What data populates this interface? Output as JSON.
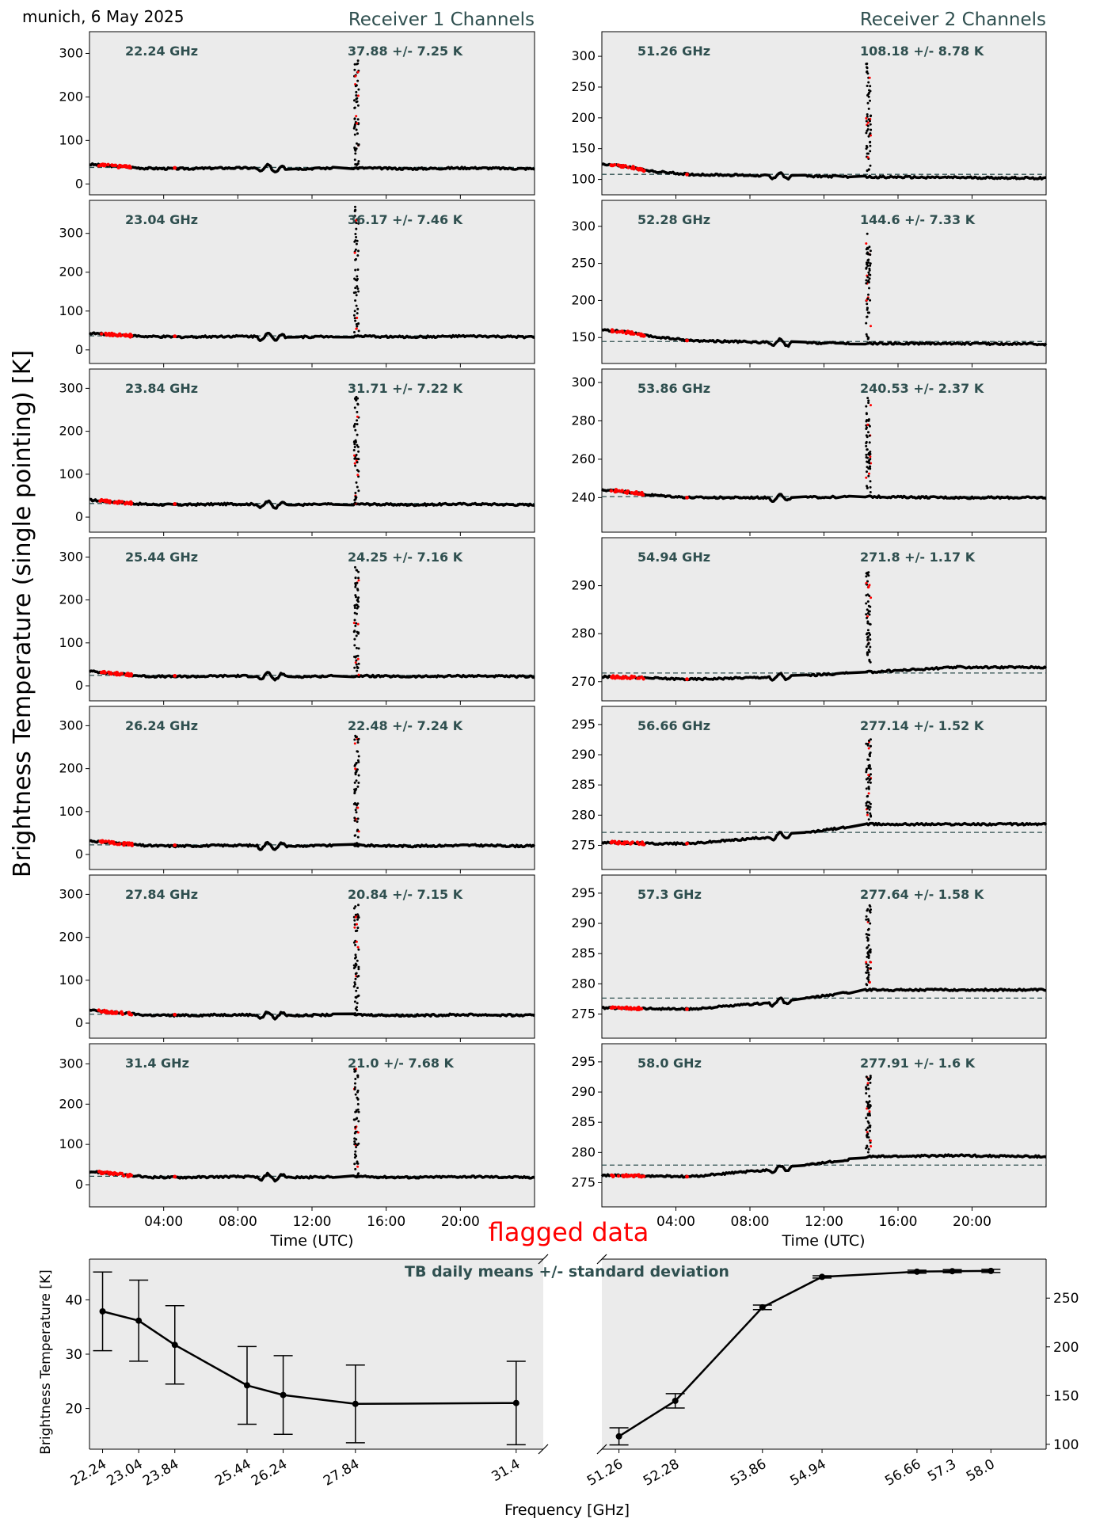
{
  "header": {
    "location_date": "munich, 6 May 2025",
    "receiver1_title": "Receiver 1 Channels",
    "receiver2_title": "Receiver 2 Channels"
  },
  "labels": {
    "y_global": "Brightness Temperature (single pointing) [K]",
    "x_time": "Time (UTC)",
    "flagged": "flagged data",
    "x_freq": "Frequency [GHz]",
    "y_bottom": "Brightness Temperature [K]",
    "bottom_title": "TB daily means +/- standard deviation"
  },
  "colors": {
    "panel_bg": "#ebebeb",
    "accent": "#2f4f4f",
    "flag": "#ff0000",
    "data": "#000000"
  },
  "chart_data": {
    "type": "scatter",
    "time_ticks": [
      "04:00",
      "08:00",
      "12:00",
      "16:00",
      "20:00"
    ],
    "time_tick_hours": [
      4,
      8,
      12,
      16,
      20
    ],
    "x_range_hours": [
      0,
      24
    ],
    "spike_time_hours": 14.4,
    "receiver1": [
      {
        "freq": "22.24 GHz",
        "stat": "37.88 +/- 7.25 K",
        "mean": 37.88,
        "start": 45,
        "ylim": [
          -25,
          350
        ],
        "yticks": [
          0,
          100,
          200,
          300
        ],
        "peak": 285
      },
      {
        "freq": "23.04 GHz",
        "stat": "36.17 +/- 7.46 K",
        "mean": 36.17,
        "start": 43,
        "ylim": [
          -35,
          385
        ],
        "yticks": [
          0,
          100,
          200,
          300
        ],
        "peak": 370
      },
      {
        "freq": "23.84 GHz",
        "stat": "31.71 +/- 7.22 K",
        "mean": 31.71,
        "start": 40,
        "ylim": [
          -35,
          345
        ],
        "yticks": [
          0,
          100,
          200,
          300
        ],
        "peak": 285
      },
      {
        "freq": "25.44 GHz",
        "stat": "24.25 +/- 7.16 K",
        "mean": 24.25,
        "start": 34,
        "ylim": [
          -35,
          345
        ],
        "yticks": [
          0,
          100,
          200,
          300
        ],
        "peak": 285
      },
      {
        "freq": "26.24 GHz",
        "stat": "22.48 +/- 7.24 K",
        "mean": 22.48,
        "start": 32,
        "ylim": [
          -35,
          345
        ],
        "yticks": [
          0,
          100,
          200,
          300
        ],
        "peak": 285
      },
      {
        "freq": "27.84 GHz",
        "stat": "20.84 +/- 7.15 K",
        "mean": 20.84,
        "start": 30,
        "ylim": [
          -35,
          345
        ],
        "yticks": [
          0,
          100,
          200,
          300
        ],
        "peak": 280
      },
      {
        "freq": "31.4 GHz",
        "stat": "21.0 +/- 7.68 K",
        "mean": 21.0,
        "start": 33,
        "ylim": [
          -55,
          350
        ],
        "yticks": [
          0,
          100,
          200,
          300
        ],
        "peak": 290
      }
    ],
    "receiver2": [
      {
        "freq": "51.26 GHz",
        "stat": "108.18 +/- 8.78 K",
        "mean": 108.18,
        "start": 125,
        "ylim": [
          75,
          340
        ],
        "yticks": [
          100,
          150,
          200,
          250,
          300
        ],
        "peak": 290,
        "trend": [
          120,
          108,
          106,
          104,
          103,
          102
        ]
      },
      {
        "freq": "52.28 GHz",
        "stat": "144.6 +/- 7.33 K",
        "mean": 144.6,
        "start": 160,
        "ylim": [
          115,
          335
        ],
        "yticks": [
          150,
          200,
          250,
          300
        ],
        "peak": 290,
        "trend": [
          158,
          146,
          143,
          142,
          142,
          141
        ]
      },
      {
        "freq": "53.86 GHz",
        "stat": "240.53 +/- 2.37 K",
        "mean": 240.53,
        "start": 244,
        "ylim": [
          222,
          307
        ],
        "yticks": [
          240,
          260,
          280,
          300
        ],
        "peak": 292,
        "trend": [
          243,
          240,
          240,
          240.5,
          240,
          240
        ]
      },
      {
        "freq": "54.94 GHz",
        "stat": "271.8 +/- 1.17 K",
        "mean": 271.8,
        "start": 271,
        "ylim": [
          266,
          300
        ],
        "yticks": [
          270,
          280,
          290
        ],
        "peak": 293,
        "trend": [
          271,
          270.5,
          271,
          272,
          273,
          273
        ]
      },
      {
        "freq": "56.66 GHz",
        "stat": "277.14 +/- 1.52 K",
        "mean": 277.14,
        "start": 275.5,
        "ylim": [
          271,
          298
        ],
        "yticks": [
          275,
          280,
          285,
          290,
          295
        ],
        "peak": 293,
        "trend": [
          275.3,
          275.3,
          276.5,
          278.5,
          278.5,
          278.5
        ]
      },
      {
        "freq": "57.3 GHz",
        "stat": "277.64 +/- 1.58 K",
        "mean": 277.64,
        "start": 276,
        "ylim": [
          271,
          298
        ],
        "yticks": [
          275,
          280,
          285,
          290,
          295
        ],
        "peak": 293,
        "trend": [
          276,
          275.8,
          277,
          279,
          279,
          279
        ]
      },
      {
        "freq": "58.0 GHz",
        "stat": "277.91 +/- 1.6 K",
        "mean": 277.91,
        "start": 276.2,
        "ylim": [
          271,
          298
        ],
        "yticks": [
          275,
          280,
          285,
          290,
          295
        ],
        "peak": 293,
        "trend": [
          276.2,
          276,
          277.3,
          279.3,
          279.5,
          279.3
        ]
      }
    ],
    "means": {
      "left": {
        "ylim": [
          12.5,
          47.5
        ],
        "yticks": [
          20,
          30,
          40
        ],
        "xlim": [
          21.95,
          32.0
        ],
        "points": [
          {
            "label": "22.24",
            "x": 22.24,
            "y": 37.88,
            "err": 7.25
          },
          {
            "label": "23.04",
            "x": 23.04,
            "y": 36.17,
            "err": 7.46
          },
          {
            "label": "23.84",
            "x": 23.84,
            "y": 31.71,
            "err": 7.22
          },
          {
            "label": "25.44",
            "x": 25.44,
            "y": 24.25,
            "err": 7.16
          },
          {
            "label": "26.24",
            "x": 26.24,
            "y": 22.48,
            "err": 7.24
          },
          {
            "label": "27.84",
            "x": 27.84,
            "y": 20.84,
            "err": 7.15
          },
          {
            "label": "31.4",
            "x": 31.4,
            "y": 21.0,
            "err": 7.68
          }
        ]
      },
      "right": {
        "ylim": [
          95,
          290
        ],
        "yticks": [
          100,
          150,
          200,
          250
        ],
        "xlim": [
          50.95,
          59.0
        ],
        "points": [
          {
            "label": "51.26",
            "x": 51.26,
            "y": 108.18,
            "err": 8.78
          },
          {
            "label": "52.28",
            "x": 52.28,
            "y": 144.6,
            "err": 7.33
          },
          {
            "label": "53.86",
            "x": 53.86,
            "y": 240.53,
            "err": 2.37
          },
          {
            "label": "54.94",
            "x": 54.94,
            "y": 271.8,
            "err": 1.17
          },
          {
            "label": "56.66",
            "x": 56.66,
            "y": 277.14,
            "err": 1.52
          },
          {
            "label": "57.3",
            "x": 57.3,
            "y": 277.64,
            "err": 1.58
          },
          {
            "label": "58.0",
            "x": 58.0,
            "y": 277.91,
            "err": 1.6
          }
        ]
      }
    }
  }
}
